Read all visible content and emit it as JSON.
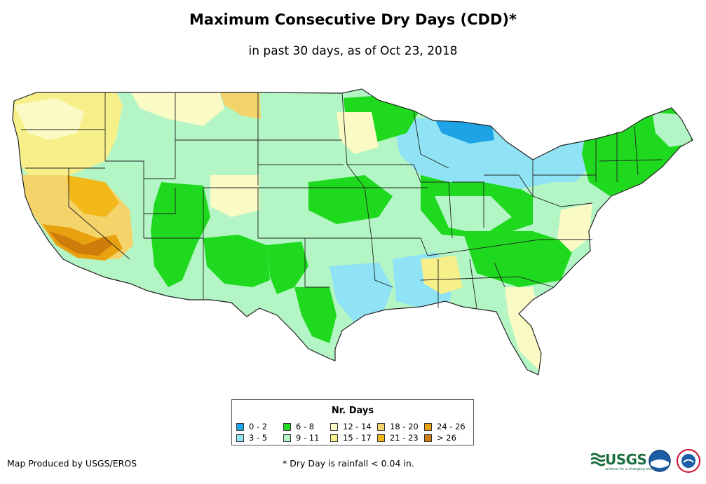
{
  "title": "Maximum Consecutive Dry Days (CDD)*",
  "subtitle": "in past 30 days, as of Oct 23, 2018",
  "legend": {
    "title": "Nr. Days",
    "items": [
      {
        "label": "0 - 2",
        "color": "#1ea3e6"
      },
      {
        "label": "3 - 5",
        "color": "#8fe3f5"
      },
      {
        "label": "6 - 8",
        "color": "#1ed91e"
      },
      {
        "label": "9 - 11",
        "color": "#b3f5c4"
      },
      {
        "label": "12 - 14",
        "color": "#fafac4"
      },
      {
        "label": "15 - 17",
        "color": "#f7f08a"
      },
      {
        "label": "18 - 20",
        "color": "#f5d36b"
      },
      {
        "label": "21 - 23",
        "color": "#f2b81a"
      },
      {
        "label": "24 - 26",
        "color": "#e8a20f"
      },
      {
        "label": "> 26",
        "color": "#cf7d0a"
      }
    ]
  },
  "credit": "Map Produced by USGS/EROS",
  "footnote": "* Dry Day is rainfall < 0.04 in.",
  "logos": {
    "usgs": "USGS",
    "usgs_tagline": "science for a changing world"
  }
}
